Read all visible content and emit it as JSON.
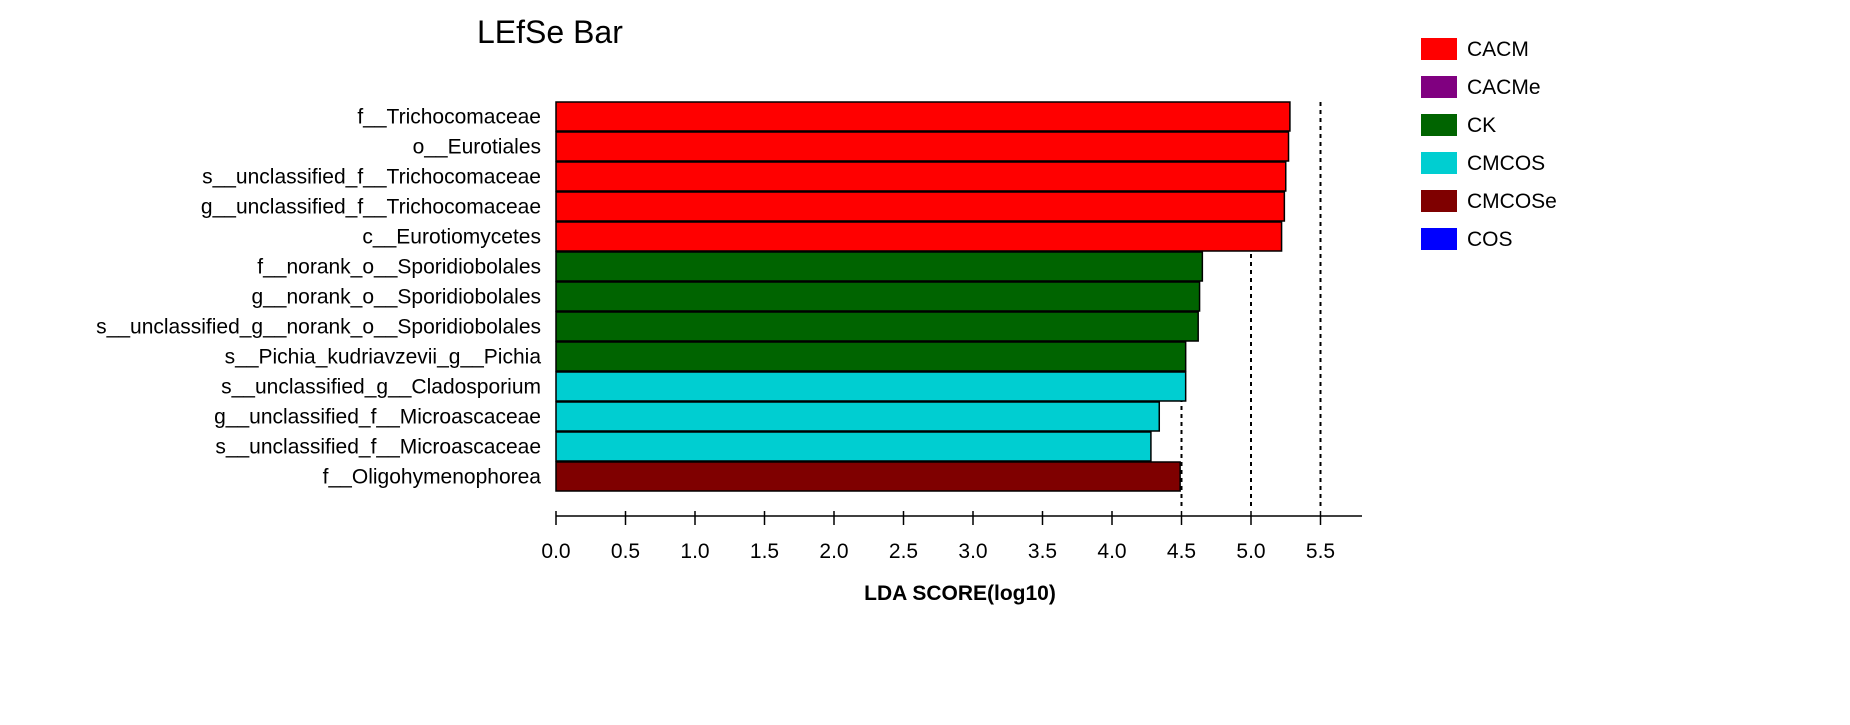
{
  "chart_data": {
    "type": "bar",
    "orientation": "horizontal",
    "title": "LEfSe Bar",
    "xlabel": "LDA SCORE(log10)",
    "xlim": [
      0,
      5.8
    ],
    "xticks": [
      0.0,
      0.5,
      1.0,
      1.5,
      2.0,
      2.5,
      3.0,
      3.5,
      4.0,
      4.5,
      5.0,
      5.5
    ],
    "gridlines_at": [
      4.5,
      5.0,
      5.5
    ],
    "legend": [
      {
        "name": "CACM",
        "color": "#ff0000"
      },
      {
        "name": "CACMe",
        "color": "#800080"
      },
      {
        "name": "CK",
        "color": "#006400"
      },
      {
        "name": "CMCOS",
        "color": "#00ced1"
      },
      {
        "name": "CMCOSe",
        "color": "#7f0000"
      },
      {
        "name": "COS",
        "color": "#0000ff"
      }
    ],
    "bars": [
      {
        "label": "f__Trichocomaceae",
        "value": 5.28,
        "group": "CACM"
      },
      {
        "label": "o__Eurotiales",
        "value": 5.27,
        "group": "CACM"
      },
      {
        "label": "s__unclassified_f__Trichocomaceae",
        "value": 5.25,
        "group": "CACM"
      },
      {
        "label": "g__unclassified_f__Trichocomaceae",
        "value": 5.24,
        "group": "CACM"
      },
      {
        "label": "c__Eurotiomycetes",
        "value": 5.22,
        "group": "CACM"
      },
      {
        "label": "f__norank_o__Sporidiobolales",
        "value": 4.65,
        "group": "CK"
      },
      {
        "label": "g__norank_o__Sporidiobolales",
        "value": 4.63,
        "group": "CK"
      },
      {
        "label": "s__unclassified_g__norank_o__Sporidiobolales",
        "value": 4.62,
        "group": "CK"
      },
      {
        "label": "s__Pichia_kudriavzevii_g__Pichia",
        "value": 4.53,
        "group": "CK"
      },
      {
        "label": "s__unclassified_g__Cladosporium",
        "value": 4.53,
        "group": "CMCOS"
      },
      {
        "label": "g__unclassified_f__Microascaceae",
        "value": 4.34,
        "group": "CMCOS"
      },
      {
        "label": "s__unclassified_f__Microascaceae",
        "value": 4.28,
        "group": "CMCOS"
      },
      {
        "label": "f__Oligohymenophorea",
        "value": 4.49,
        "group": "CMCOSe"
      }
    ]
  }
}
